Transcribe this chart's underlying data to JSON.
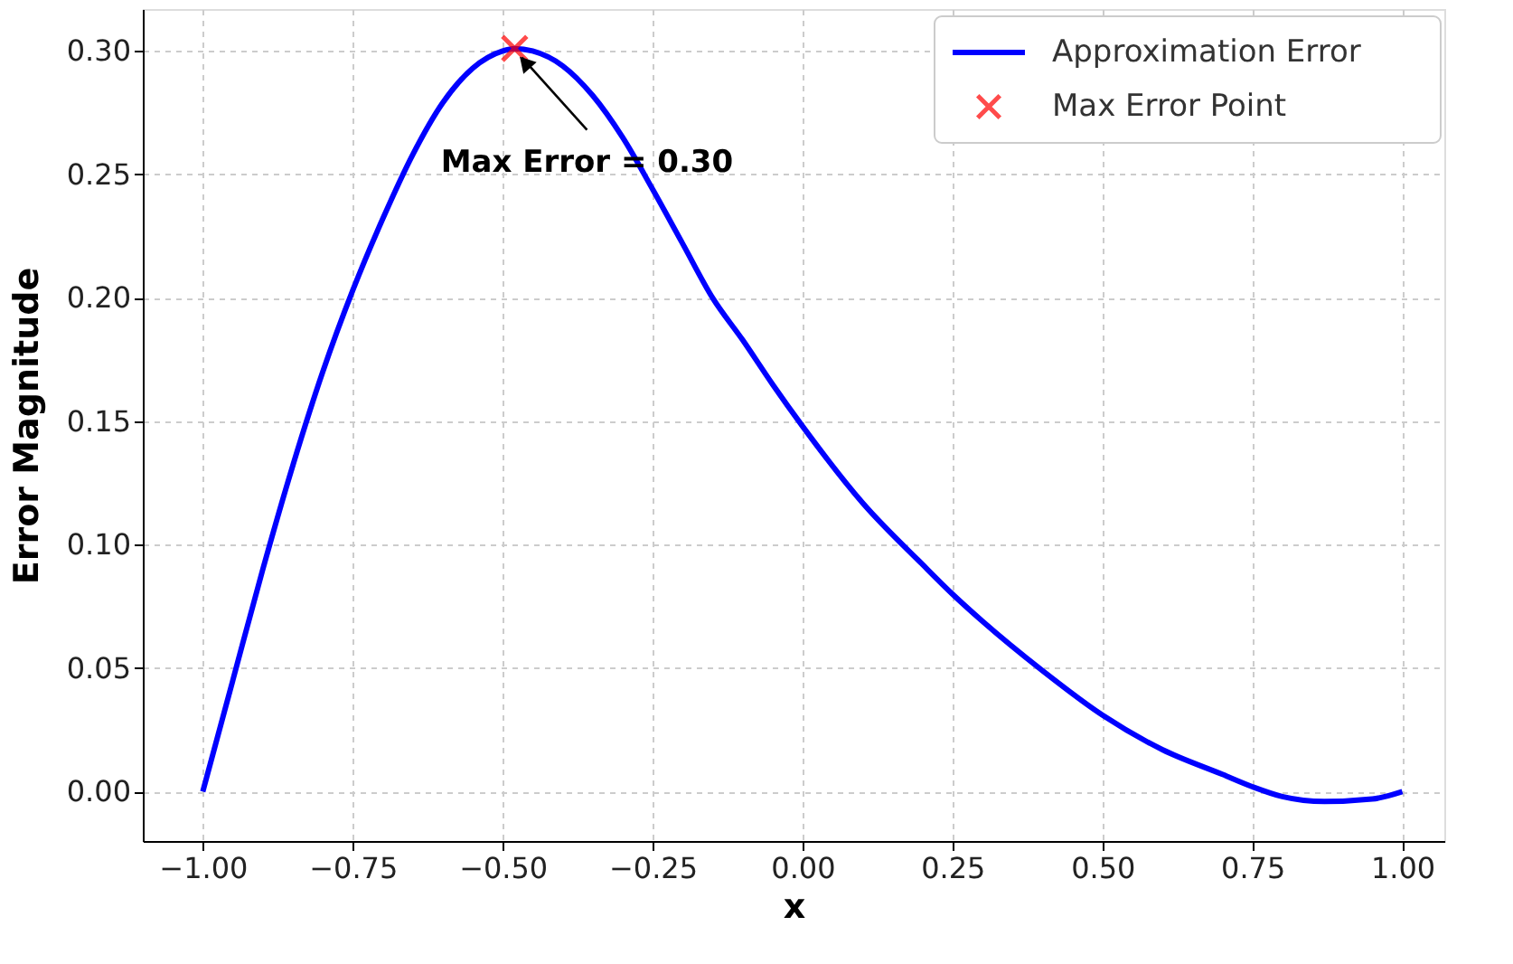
{
  "chart_data": {
    "type": "line",
    "xlabel": "x",
    "ylabel": "Error Magnitude",
    "xlim": [
      -1.1,
      1.07
    ],
    "ylim": [
      -0.02,
      0.317
    ],
    "xticks": [
      {
        "value": -1,
        "label": "−1.00"
      },
      {
        "value": -0.75,
        "label": "−0.75"
      },
      {
        "value": -0.5,
        "label": "−0.50"
      },
      {
        "value": -0.25,
        "label": "−0.25"
      },
      {
        "value": 0,
        "label": "0.00"
      },
      {
        "value": 0.25,
        "label": "0.25"
      },
      {
        "value": 0.5,
        "label": "0.50"
      },
      {
        "value": 0.75,
        "label": "0.75"
      },
      {
        "value": 1,
        "label": "1.00"
      }
    ],
    "yticks": [
      {
        "value": 0,
        "label": "0.00"
      },
      {
        "value": 0.05,
        "label": "0.05"
      },
      {
        "value": 0.1,
        "label": "0.10"
      },
      {
        "value": 0.15,
        "label": "0.15"
      },
      {
        "value": 0.2,
        "label": "0.20"
      },
      {
        "value": 0.25,
        "label": "0.25"
      },
      {
        "value": 0.3,
        "label": "0.30"
      }
    ],
    "grid": true,
    "legend": "top right",
    "series": [
      {
        "name": "Approximation Error",
        "color": "#0000ff",
        "marker": "none",
        "line_style": "solid",
        "x": [
          -1.0,
          -0.95,
          -0.9,
          -0.85,
          -0.8,
          -0.75,
          -0.7,
          -0.65,
          -0.6,
          -0.55,
          -0.5,
          -0.48,
          -0.45,
          -0.4,
          -0.35,
          -0.3,
          -0.25,
          -0.2,
          -0.15,
          -0.1,
          -0.05,
          0.0,
          0.1,
          0.2,
          0.25,
          0.3,
          0.4,
          0.5,
          0.6,
          0.7,
          0.75,
          0.8,
          0.87,
          0.95,
          1.0
        ],
        "values": [
          0.0,
          0.045,
          0.09,
          0.132,
          0.17,
          0.203,
          0.232,
          0.258,
          0.279,
          0.293,
          0.3,
          0.301,
          0.3,
          0.294,
          0.282,
          0.265,
          0.244,
          0.222,
          0.2,
          0.183,
          0.165,
          0.148,
          0.117,
          0.092,
          0.08,
          0.069,
          0.049,
          0.031,
          0.017,
          0.007,
          0.002,
          -0.002,
          -0.004,
          -0.003,
          0.0
        ]
      },
      {
        "name": "Max Error Point",
        "type": "scatter",
        "color": "#ff0000",
        "marker": "cross",
        "x": [
          -0.48
        ],
        "values": [
          0.301
        ]
      }
    ],
    "annotations": [
      {
        "text": "Max Error = 0.30",
        "x": -0.48,
        "y": 0.301
      }
    ]
  }
}
